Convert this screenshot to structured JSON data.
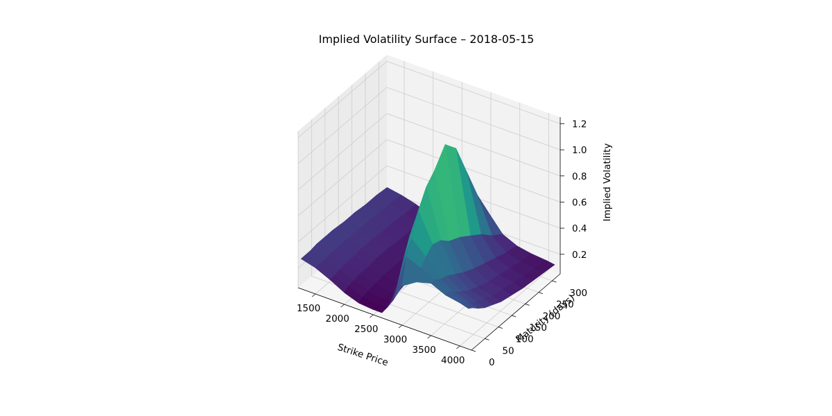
{
  "chart_data": {
    "type": "surface",
    "title": "Implied Volatility Surface – 2018-05-15",
    "xlabel": "Strike Price",
    "ylabel": "Maturity (days)",
    "zlabel": "Implied Volatility",
    "xlim": [
      1200,
      4200
    ],
    "ylim": [
      0,
      330
    ],
    "zlim": [
      0.05,
      1.25
    ],
    "xticks": [
      "1500",
      "2000",
      "2500",
      "3000",
      "3500",
      "4000"
    ],
    "yticks": [
      "0",
      "50",
      "100",
      "150",
      "200",
      "250",
      "300"
    ],
    "zticks": [
      "0.2",
      "0.4",
      "0.6",
      "0.8",
      "1.0",
      "1.2"
    ],
    "colormap": "viridis",
    "grid": true,
    "strikes": [
      1250,
      1500,
      1750,
      2000,
      2250,
      2500,
      2650,
      2750,
      2850,
      3000,
      3250,
      3500,
      3750,
      4000,
      4150
    ],
    "maturities": [
      0,
      15,
      35,
      60,
      90,
      120,
      160,
      200,
      240,
      280,
      320
    ],
    "iv": [
      [
        0.28,
        0.25,
        0.2,
        0.14,
        0.1,
        0.09,
        0.09,
        0.15,
        0.22,
        0.35,
        0.42,
        0.45,
        0.4,
        0.38,
        0.36
      ],
      [
        0.28,
        0.25,
        0.2,
        0.16,
        0.12,
        0.1,
        0.1,
        0.18,
        0.3,
        0.55,
        0.5,
        0.45,
        0.4,
        0.36,
        0.34
      ],
      [
        0.28,
        0.25,
        0.21,
        0.17,
        0.13,
        0.11,
        0.12,
        0.25,
        0.45,
        0.65,
        0.55,
        0.42,
        0.36,
        0.32,
        0.3
      ],
      [
        0.29,
        0.26,
        0.22,
        0.18,
        0.14,
        0.12,
        0.14,
        0.35,
        0.6,
        0.82,
        0.6,
        0.4,
        0.32,
        0.28,
        0.26
      ],
      [
        0.29,
        0.26,
        0.22,
        0.18,
        0.15,
        0.13,
        0.16,
        0.4,
        0.7,
        0.95,
        0.58,
        0.36,
        0.28,
        0.25,
        0.23
      ],
      [
        0.29,
        0.26,
        0.23,
        0.19,
        0.15,
        0.13,
        0.15,
        0.38,
        0.75,
        1.02,
        0.52,
        0.32,
        0.25,
        0.22,
        0.2
      ],
      [
        0.28,
        0.26,
        0.23,
        0.19,
        0.15,
        0.13,
        0.14,
        0.32,
        0.8,
        1.15,
        0.48,
        0.28,
        0.22,
        0.2,
        0.18
      ],
      [
        0.28,
        0.26,
        0.22,
        0.18,
        0.15,
        0.13,
        0.13,
        0.28,
        0.72,
        1.05,
        0.42,
        0.25,
        0.2,
        0.18,
        0.16
      ],
      [
        0.27,
        0.25,
        0.22,
        0.18,
        0.14,
        0.12,
        0.12,
        0.22,
        0.55,
        0.8,
        0.36,
        0.22,
        0.18,
        0.16,
        0.15
      ],
      [
        0.27,
        0.25,
        0.21,
        0.17,
        0.14,
        0.12,
        0.11,
        0.18,
        0.38,
        0.55,
        0.28,
        0.19,
        0.16,
        0.15,
        0.14
      ],
      [
        0.26,
        0.24,
        0.21,
        0.17,
        0.13,
        0.11,
        0.11,
        0.15,
        0.25,
        0.35,
        0.22,
        0.17,
        0.15,
        0.14,
        0.13
      ]
    ]
  }
}
